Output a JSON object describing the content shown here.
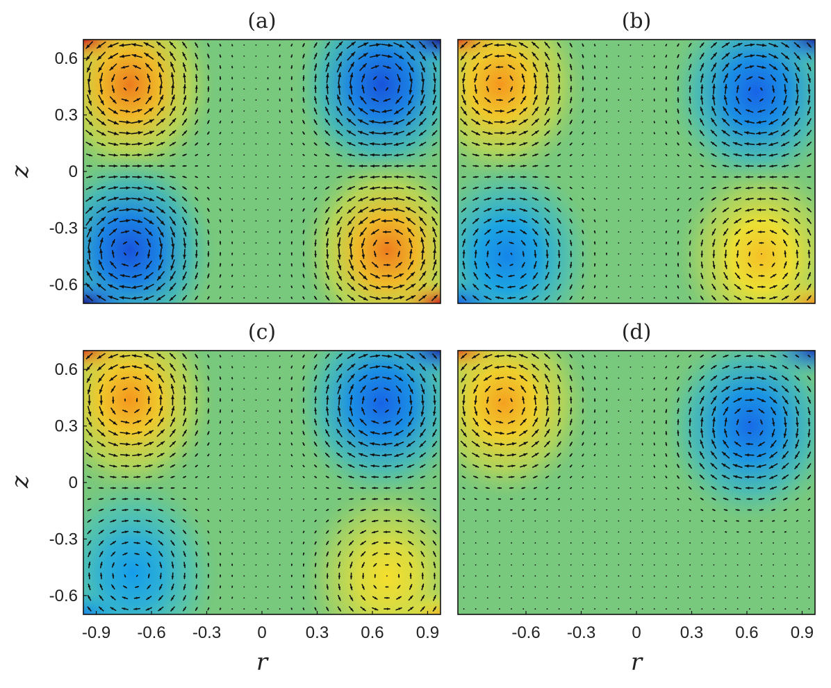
{
  "chart_data": [
    {
      "type": "heatmap",
      "title": "(a)",
      "xlabel": "",
      "ylabel": "z",
      "xlim": [
        -0.97,
        0.97
      ],
      "ylim": [
        -0.7,
        0.7
      ],
      "x_ticks": [],
      "y_ticks": [
        "0.6",
        "0.3",
        "0",
        "-0.3",
        "-0.6"
      ],
      "x_tick_values": [],
      "y_tick_values": [
        0.6,
        0.3,
        0,
        -0.3,
        -0.6
      ],
      "overlay": "velocity vector arrows",
      "colormap": "jet",
      "vortices": [
        {
          "r": -0.72,
          "z": 0.46,
          "sign": 1,
          "strength": 1.0
        },
        {
          "r": 0.65,
          "z": 0.46,
          "sign": -1,
          "strength": 1.0
        },
        {
          "r": -0.72,
          "z": -0.42,
          "sign": -1,
          "strength": 1.0
        },
        {
          "r": 0.68,
          "z": -0.42,
          "sign": 1,
          "strength": 1.0
        }
      ]
    },
    {
      "type": "heatmap",
      "title": "(b)",
      "xlabel": "",
      "ylabel": "",
      "xlim": [
        -0.97,
        0.97
      ],
      "ylim": [
        -0.7,
        0.7
      ],
      "x_ticks": [],
      "y_ticks": [],
      "x_tick_values": [],
      "y_tick_values": [],
      "overlay": "velocity vector arrows",
      "colormap": "jet",
      "vortices": [
        {
          "r": -0.74,
          "z": 0.46,
          "sign": 1,
          "strength": 0.9
        },
        {
          "r": 0.65,
          "z": 0.42,
          "sign": -1,
          "strength": 0.9
        },
        {
          "r": -0.7,
          "z": -0.45,
          "sign": -1,
          "strength": 0.7
        },
        {
          "r": 0.68,
          "z": -0.45,
          "sign": 1,
          "strength": 0.7
        }
      ]
    },
    {
      "type": "heatmap",
      "title": "(c)",
      "xlabel": "r",
      "ylabel": "z",
      "xlim": [
        -0.97,
        0.97
      ],
      "ylim": [
        -0.7,
        0.7
      ],
      "x_ticks": [
        "-0.9",
        "-0.6",
        "-0.3",
        "0",
        "0.3",
        "0.6",
        "0.9"
      ],
      "y_ticks": [
        "0.6",
        "0.3",
        "0",
        "-0.3",
        "-0.6"
      ],
      "x_tick_values": [
        -0.9,
        -0.6,
        -0.3,
        0,
        0.3,
        0.6,
        0.9
      ],
      "y_tick_values": [
        0.6,
        0.3,
        0,
        -0.3,
        -0.6
      ],
      "overlay": "velocity vector arrows",
      "colormap": "jet",
      "vortices": [
        {
          "r": -0.72,
          "z": 0.44,
          "sign": 1,
          "strength": 0.9
        },
        {
          "r": 0.65,
          "z": 0.42,
          "sign": -1,
          "strength": 0.9
        },
        {
          "r": -0.7,
          "z": -0.48,
          "sign": -1,
          "strength": 0.55
        },
        {
          "r": 0.68,
          "z": -0.5,
          "sign": 1,
          "strength": 0.55
        }
      ]
    },
    {
      "type": "heatmap",
      "title": "(d)",
      "xlabel": "r",
      "ylabel": "",
      "xlim": [
        -0.97,
        0.97
      ],
      "ylim": [
        -0.7,
        0.7
      ],
      "x_ticks": [
        "-0.6",
        "-0.3",
        "0",
        "0.3",
        "0.6",
        "0.9"
      ],
      "y_ticks": [],
      "x_tick_values": [
        -0.6,
        -0.3,
        0,
        0.3,
        0.6,
        0.9
      ],
      "y_tick_values": [],
      "overlay": "velocity vector arrows",
      "colormap": "jet",
      "vortices": [
        {
          "r": -0.72,
          "z": 0.42,
          "sign": 1,
          "strength": 0.85
        },
        {
          "r": 0.62,
          "z": 0.3,
          "sign": -1,
          "strength": 0.85
        }
      ]
    }
  ]
}
